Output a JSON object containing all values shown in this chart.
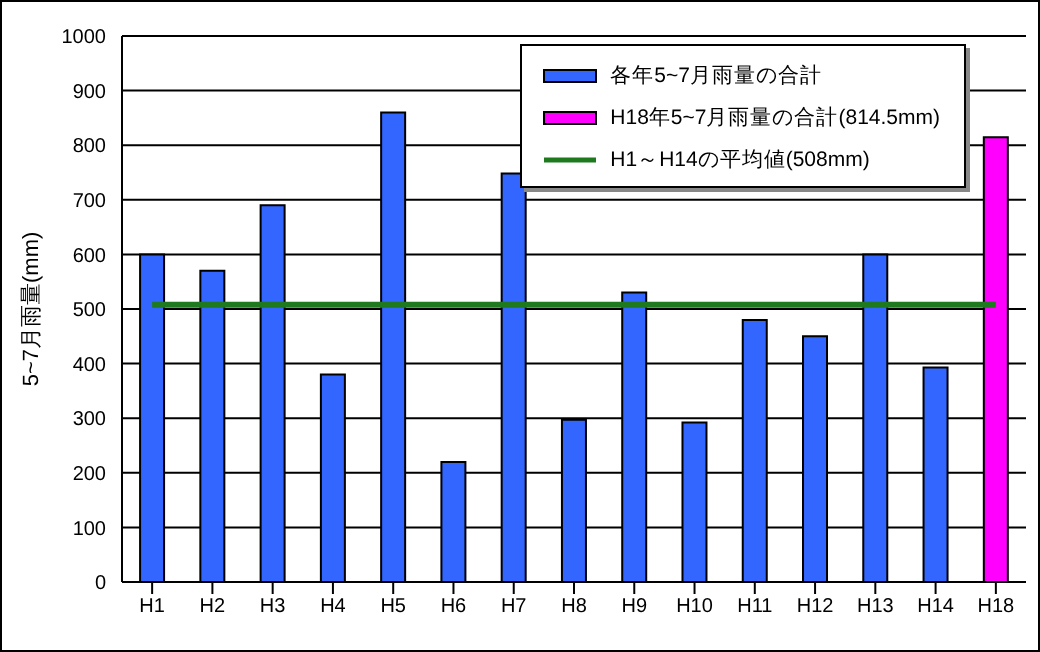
{
  "chart_data": {
    "type": "bar",
    "ylabel": "5~7月雨量(mm)",
    "categories": [
      "H1",
      "H2",
      "H3",
      "H4",
      "H5",
      "H6",
      "H7",
      "H8",
      "H9",
      "H10",
      "H11",
      "H12",
      "H13",
      "H14",
      "H18"
    ],
    "series": [
      {
        "name": "各年5~7月雨量の合計",
        "color": "#3366ff",
        "values": [
          600,
          570,
          690,
          380,
          860,
          220,
          748,
          297,
          530,
          292,
          480,
          450,
          600,
          393,
          null
        ]
      },
      {
        "name": "H18年5~7月雨量の合計(814.5mm)",
        "color": "#ff00ff",
        "values": [
          null,
          null,
          null,
          null,
          null,
          null,
          null,
          null,
          null,
          null,
          null,
          null,
          null,
          null,
          814.5
        ]
      },
      {
        "name": "H1～H14の平均値(508mm)",
        "type": "line",
        "color": "#1f7a1f",
        "values": [
          508,
          508,
          508,
          508,
          508,
          508,
          508,
          508,
          508,
          508,
          508,
          508,
          508,
          508,
          508
        ]
      }
    ],
    "stacked": true,
    "ylim": [
      0,
      1000
    ],
    "yticks": [
      0,
      100,
      200,
      300,
      400,
      500,
      600,
      700,
      800,
      900,
      1000
    ],
    "grid": "y",
    "legend": "top right"
  }
}
